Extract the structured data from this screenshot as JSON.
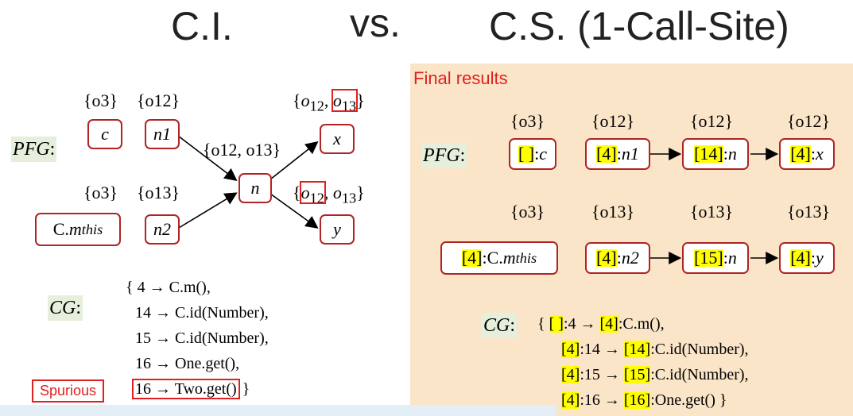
{
  "title": {
    "left": "C.I.",
    "vs": "vs.",
    "right": "C.S. (1-Call-Site)"
  },
  "left": {
    "pfg_label": "PFG",
    "pfg_colon": ":",
    "sets": {
      "c": "{o3}",
      "n1": "{o12}",
      "x": "{o12, o13}",
      "n": "{o12, o13}",
      "cm": "{o3}",
      "n2": "{o13}",
      "y": "{o12, o13}"
    },
    "nodes": {
      "c": "c",
      "n1": "n1",
      "n": "n",
      "x": "x",
      "cm": "C.m_this",
      "n2": "n2",
      "y": "y"
    },
    "cg_label": "CG",
    "cg_colon": ":",
    "cg_lines": [
      "{ 4 → C.m(),",
      "14 → C.id(Number),",
      "15 → C.id(Number),",
      "16 → One.get(),",
      "16 → Two.get()",
      "}"
    ],
    "spurious": "Spurious"
  },
  "right": {
    "final_results": "Final results",
    "pfg_label": "PFG",
    "pfg_colon": ":",
    "row1_sets": [
      "{o3}",
      "{o12}",
      "{o12}",
      "{o12}"
    ],
    "row2_sets": [
      "{o3}",
      "{o13}",
      "{o13}",
      "{o13}"
    ],
    "row1_nodes": [
      {
        "ctx": "[ ]",
        "var": "c"
      },
      {
        "ctx": "[4]",
        "var": "n1"
      },
      {
        "ctx": "[14]",
        "var": "n"
      },
      {
        "ctx": "[4]",
        "var": "x"
      }
    ],
    "row2_nodes": [
      {
        "ctx": "[4]",
        "var": "C.m_this"
      },
      {
        "ctx": "[4]",
        "var": "n2"
      },
      {
        "ctx": "[15]",
        "var": "n"
      },
      {
        "ctx": "[4]",
        "var": "y"
      }
    ],
    "cg_label": "CG",
    "cg_colon": ":",
    "cg_lines": [
      {
        "prefix": "{ ",
        "ctx1": "[ ]",
        "mid": ":4 → ",
        "ctx2": "[4]",
        "suffix": ":C.m(),"
      },
      {
        "prefix": "",
        "ctx1": "[4]",
        "mid": ":14 → ",
        "ctx2": "[14]",
        "suffix": ":C.id(Number),"
      },
      {
        "prefix": "",
        "ctx1": "[4]",
        "mid": ":15 → ",
        "ctx2": "[15]",
        "suffix": ":C.id(Number),"
      },
      {
        "prefix": "",
        "ctx1": "[4]",
        "mid": ":16 → ",
        "ctx2": "[16]",
        "suffix": ":One.get() }"
      }
    ]
  },
  "colors": {
    "node_border": "#b02424",
    "highlight": "#ffff00",
    "mark_red": "#e02020",
    "panel_bg": "#fbe5c8",
    "label_bg": "#e5efdc"
  }
}
